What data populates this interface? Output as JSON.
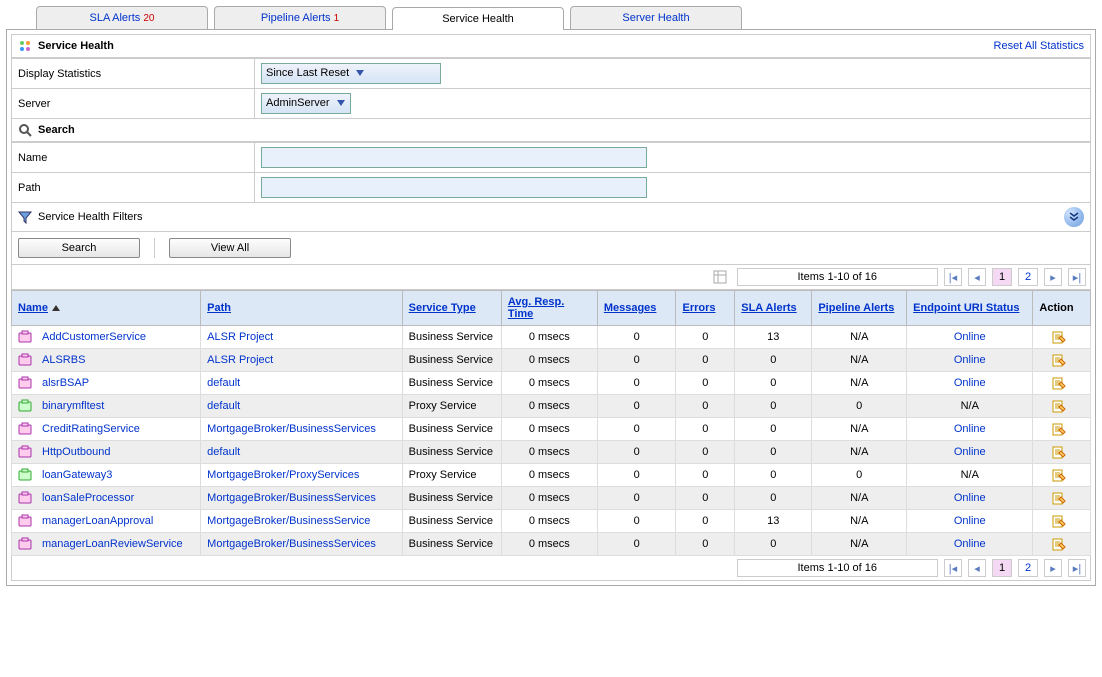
{
  "tabs": [
    {
      "label": "SLA Alerts",
      "count": "20",
      "active": false
    },
    {
      "label": "Pipeline Alerts",
      "count": "1",
      "active": false
    },
    {
      "label": "Service Health",
      "count": "",
      "active": true
    },
    {
      "label": "Server Health",
      "count": "",
      "active": false
    }
  ],
  "header": {
    "title": "Service Health",
    "reset": "Reset All Statistics"
  },
  "form": {
    "display_label": "Display Statistics",
    "display_value": "Since Last Reset",
    "server_label": "Server",
    "server_value": "AdminServer"
  },
  "search": {
    "title": "Search",
    "name_label": "Name",
    "name_value": "",
    "path_label": "Path",
    "path_value": ""
  },
  "filters": {
    "title": "Service Health Filters",
    "search_btn": "Search",
    "viewall_btn": "View All"
  },
  "pager": {
    "summary": "Items 1-10 of 16",
    "pages": [
      "1",
      "2"
    ],
    "active": "1"
  },
  "columns": {
    "name": "Name",
    "path": "Path",
    "stype": "Service Type",
    "art": "Avg. Resp. Time",
    "msg": "Messages",
    "err": "Errors",
    "sla": "SLA Alerts",
    "pipe": "Pipeline Alerts",
    "ep": "Endpoint URI Status",
    "action": "Action"
  },
  "rows": [
    {
      "icon": "bs",
      "name": "AddCustomerService",
      "path": "ALSR Project",
      "stype": "Business Service",
      "art": "0 msecs",
      "msg": "0",
      "err": "0",
      "sla": "13",
      "pipe": "N/A",
      "ep": "Online"
    },
    {
      "icon": "bs",
      "name": "ALSRBS",
      "path": "ALSR Project",
      "stype": "Business Service",
      "art": "0 msecs",
      "msg": "0",
      "err": "0",
      "sla": "0",
      "pipe": "N/A",
      "ep": "Online"
    },
    {
      "icon": "bs",
      "name": "alsrBSAP",
      "path": "default",
      "stype": "Business Service",
      "art": "0 msecs",
      "msg": "0",
      "err": "0",
      "sla": "0",
      "pipe": "N/A",
      "ep": "Online"
    },
    {
      "icon": "ps",
      "name": "binarymfltest",
      "path": "default",
      "stype": "Proxy Service",
      "art": "0 msecs",
      "msg": "0",
      "err": "0",
      "sla": "0",
      "pipe": "0",
      "ep": "N/A"
    },
    {
      "icon": "bs",
      "name": "CreditRatingService",
      "path": "MortgageBroker/BusinessServices",
      "stype": "Business Service",
      "art": "0 msecs",
      "msg": "0",
      "err": "0",
      "sla": "0",
      "pipe": "N/A",
      "ep": "Online"
    },
    {
      "icon": "bs",
      "name": "HttpOutbound",
      "path": "default",
      "stype": "Business Service",
      "art": "0 msecs",
      "msg": "0",
      "err": "0",
      "sla": "0",
      "pipe": "N/A",
      "ep": "Online"
    },
    {
      "icon": "ps",
      "name": "loanGateway3",
      "path": "MortgageBroker/ProxyServices",
      "stype": "Proxy Service",
      "art": "0 msecs",
      "msg": "0",
      "err": "0",
      "sla": "0",
      "pipe": "0",
      "ep": "N/A"
    },
    {
      "icon": "bs",
      "name": "loanSaleProcessor",
      "path": "MortgageBroker/BusinessServices",
      "stype": "Business Service",
      "art": "0 msecs",
      "msg": "0",
      "err": "0",
      "sla": "0",
      "pipe": "N/A",
      "ep": "Online"
    },
    {
      "icon": "bs",
      "name": "managerLoanApproval",
      "path": "MortgageBroker/BusinessService",
      "stype": "Business Service",
      "art": "0 msecs",
      "msg": "0",
      "err": "0",
      "sla": "13",
      "pipe": "N/A",
      "ep": "Online"
    },
    {
      "icon": "bs",
      "name": "managerLoanReviewService",
      "path": "MortgageBroker/BusinessServices",
      "stype": "Business Service",
      "art": "0 msecs",
      "msg": "0",
      "err": "0",
      "sla": "0",
      "pipe": "N/A",
      "ep": "Online"
    }
  ],
  "colors": {
    "link": "#0033cc",
    "alt_row": "#eeeeee",
    "th_bg": "#dde8f6"
  }
}
